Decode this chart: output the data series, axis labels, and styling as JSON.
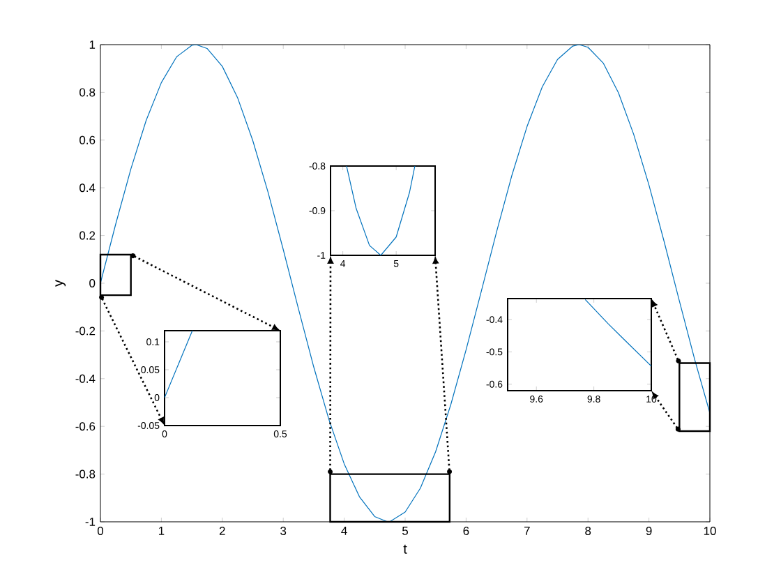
{
  "chart_data": [
    {
      "type": "line",
      "xlabel": "t",
      "ylabel": "y",
      "color": "#0072bd",
      "x": [
        0,
        0.25,
        0.5,
        0.75,
        1,
        1.25,
        1.5,
        1.5708,
        1.75,
        2,
        2.25,
        2.5,
        2.75,
        3,
        3.25,
        3.5,
        3.75,
        4,
        4.25,
        4.5,
        4.7124,
        4.75,
        5,
        5.25,
        5.5,
        5.75,
        6,
        6.25,
        6.5,
        6.75,
        7,
        7.25,
        7.5,
        7.75,
        7.854,
        8,
        8.25,
        8.5,
        8.75,
        9,
        9.25,
        9.5,
        9.75,
        10
      ],
      "values": [
        0,
        0.247,
        0.479,
        0.682,
        0.841,
        0.949,
        0.997,
        1,
        0.984,
        0.909,
        0.778,
        0.598,
        0.382,
        0.141,
        -0.108,
        -0.351,
        -0.572,
        -0.757,
        -0.895,
        -0.978,
        -1,
        -0.999,
        -0.959,
        -0.859,
        -0.706,
        -0.508,
        -0.279,
        -0.033,
        0.215,
        0.451,
        0.657,
        0.823,
        0.938,
        0.994,
        1,
        0.989,
        0.923,
        0.798,
        0.624,
        0.412,
        0.174,
        -0.075,
        -0.319,
        -0.544
      ],
      "xlim": [
        0,
        10
      ],
      "ylim": [
        -1,
        1
      ],
      "xticks": [
        0,
        1,
        2,
        3,
        4,
        5,
        6,
        7,
        8,
        9,
        10
      ],
      "yticks": [
        -1,
        -0.8,
        -0.6,
        -0.4,
        -0.2,
        0,
        0.2,
        0.4,
        0.6,
        0.8,
        1
      ]
    },
    {
      "type": "line",
      "color": "#0072bd",
      "x": [
        0,
        0.05,
        0.1,
        0.12
      ],
      "values": [
        0,
        0.05,
        0.1,
        0.12
      ],
      "xlim": [
        0,
        0.5
      ],
      "ylim": [
        -0.05,
        0.12
      ],
      "xticks": [
        0,
        0.5
      ],
      "yticks": [
        -0.05,
        0,
        0.05,
        0.1
      ]
    },
    {
      "type": "line",
      "color": "#0072bd",
      "x": [
        4.07,
        4.25,
        4.5,
        4.7124,
        5,
        5.25,
        5.35
      ],
      "values": [
        -0.8,
        -0.895,
        -0.978,
        -1,
        -0.959,
        -0.859,
        -0.8
      ],
      "xlim": [
        3.77,
        5.73
      ],
      "ylim": [
        -1,
        -0.8
      ],
      "xticks": [
        4,
        5
      ],
      "yticks": [
        -1,
        -0.9,
        -0.8
      ]
    },
    {
      "type": "line",
      "color": "#0072bd",
      "x": [
        9.77,
        9.85,
        9.9,
        10
      ],
      "values": [
        -0.338,
        -0.413,
        -0.457,
        -0.544
      ],
      "xlim": [
        9.5,
        10
      ],
      "ylim": [
        -0.62,
        -0.335
      ],
      "xticks": [
        9.6,
        9.8,
        10
      ],
      "yticks": [
        -0.6,
        -0.5,
        -0.4
      ]
    }
  ]
}
